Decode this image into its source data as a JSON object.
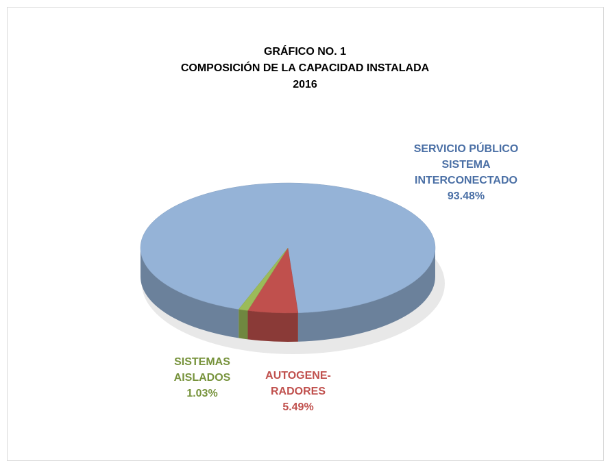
{
  "chart_data": {
    "type": "pie",
    "title": "GRÁFICO NO. 1\nCOMPOSICIÓN  DE  LA  CAPACIDAD  INSTALADA\n2016",
    "categories": [
      "SERVICIO PÚBLICO\nSISTEMA\nINTERCONECTADO",
      "AUTOGENE-\nRADORES",
      "SISTEMAS\nAISLADOS"
    ],
    "values": [
      93.48,
      5.49,
      1.03
    ],
    "value_labels": [
      "93.48%",
      "5.49%",
      "1.03%"
    ],
    "colors": [
      "#95b3d7",
      "#c0504d",
      "#9bbb59"
    ],
    "label_colors": [
      "#4a6fa5",
      "#c0504d",
      "#77933c"
    ]
  }
}
